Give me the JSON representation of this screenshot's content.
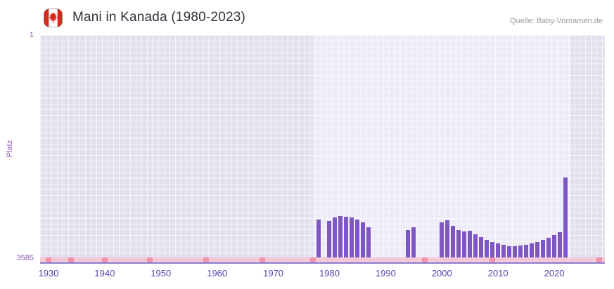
{
  "header": {
    "title": "Mani in Kanada (1980-2023)",
    "flag_icon": "canada-flag",
    "source": "Quelle: Baby-Vornamen.de"
  },
  "colors": {
    "bar": "#7e57c2",
    "plot_bg": "#e3e0ee",
    "highlight_bg": "#edebf7",
    "grid_line": "rgba(255,255,255,0.65)",
    "strip_light": "#f3c8d6",
    "strip_dark": "#ef92ad",
    "axis_line": "#8b80d2",
    "x_tick": "#5244ae",
    "y_tick": "#8d56b4",
    "title": "#32323e",
    "source": "#9a9aa2",
    "flag_red": "#d52b1e"
  },
  "chart_data": {
    "type": "bar",
    "title": "Mani in Kanada (1980-2023)",
    "source": "Quelle: Baby-Vornamen.de",
    "xlabel": "",
    "ylabel": "Platz",
    "y_axis": {
      "top_label": "1",
      "bottom_label": "3585",
      "min": 1,
      "max": 3585,
      "inverted": true
    },
    "x_ticks": [
      1930,
      1940,
      1950,
      1960,
      1970,
      1980,
      1990,
      2000,
      2010,
      2020
    ],
    "x_range": [
      1928.5,
      2029
    ],
    "highlight_range": [
      1977,
      2023
    ],
    "grid": true,
    "legend": false,
    "points": [
      {
        "year": 1978,
        "rank": 2970
      },
      {
        "year": 1980,
        "rank": 3000
      },
      {
        "year": 1981,
        "rank": 2940
      },
      {
        "year": 1982,
        "rank": 2915
      },
      {
        "year": 1983,
        "rank": 2925
      },
      {
        "year": 1984,
        "rank": 2945
      },
      {
        "year": 1985,
        "rank": 2970
      },
      {
        "year": 1986,
        "rank": 3025
      },
      {
        "year": 1987,
        "rank": 3100
      },
      {
        "year": 1994,
        "rank": 3140
      },
      {
        "year": 1995,
        "rank": 3095
      },
      {
        "year": 2000,
        "rank": 3025
      },
      {
        "year": 2001,
        "rank": 2990
      },
      {
        "year": 2002,
        "rank": 3080
      },
      {
        "year": 2003,
        "rank": 3140
      },
      {
        "year": 2004,
        "rank": 3170
      },
      {
        "year": 2005,
        "rank": 3150
      },
      {
        "year": 2006,
        "rank": 3215
      },
      {
        "year": 2007,
        "rank": 3260
      },
      {
        "year": 2008,
        "rank": 3305
      },
      {
        "year": 2009,
        "rank": 3340
      },
      {
        "year": 2010,
        "rank": 3360
      },
      {
        "year": 2011,
        "rank": 3385
      },
      {
        "year": 2012,
        "rank": 3405
      },
      {
        "year": 2013,
        "rank": 3405
      },
      {
        "year": 2014,
        "rank": 3395
      },
      {
        "year": 2015,
        "rank": 3385
      },
      {
        "year": 2016,
        "rank": 3360
      },
      {
        "year": 2017,
        "rank": 3340
      },
      {
        "year": 2018,
        "rank": 3305
      },
      {
        "year": 2019,
        "rank": 3270
      },
      {
        "year": 2020,
        "rank": 3225
      },
      {
        "year": 2021,
        "rank": 3180
      },
      {
        "year": 2022,
        "rank": 2300
      }
    ],
    "missing_strip_range": [
      1928.5,
      2029
    ],
    "missing_markers": [
      1930,
      1934,
      1940,
      1948,
      1958,
      1968,
      1977,
      1997,
      2009,
      2028
    ]
  }
}
